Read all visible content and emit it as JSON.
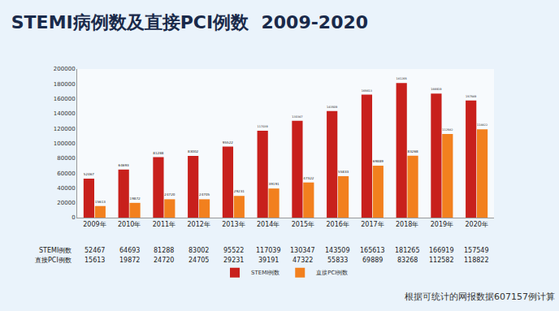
{
  "chart_data": {
    "type": "bar",
    "title": "STEMI病例数及直接PCI例数  2009-2020",
    "categories": [
      "2009年",
      "2010年",
      "2011年",
      "2012年",
      "2013年",
      "2014年",
      "2015年",
      "2016年",
      "2017年",
      "2018年",
      "2019年",
      "2020年"
    ],
    "series": [
      {
        "name": "STEMI例数",
        "color": "#c8201c",
        "values": [
          52467,
          64693,
          81288,
          83002,
          95522,
          117039,
          130347,
          143509,
          165613,
          181265,
          166919,
          157549
        ]
      },
      {
        "name": "直接PCI例数",
        "color": "#f2801e",
        "values": [
          15613,
          19872,
          24720,
          24705,
          29231,
          39191,
          47322,
          55833,
          69889,
          83268,
          112582,
          118822
        ]
      }
    ],
    "ylim": [
      0,
      200000
    ],
    "yticks": [
      0,
      20000,
      40000,
      60000,
      80000,
      100000,
      120000,
      140000,
      160000,
      180000,
      200000
    ],
    "grid": false,
    "legend": "bottom",
    "data_labels": true,
    "annotations": [
      "根据可统计的网报数据607157例计算"
    ]
  }
}
